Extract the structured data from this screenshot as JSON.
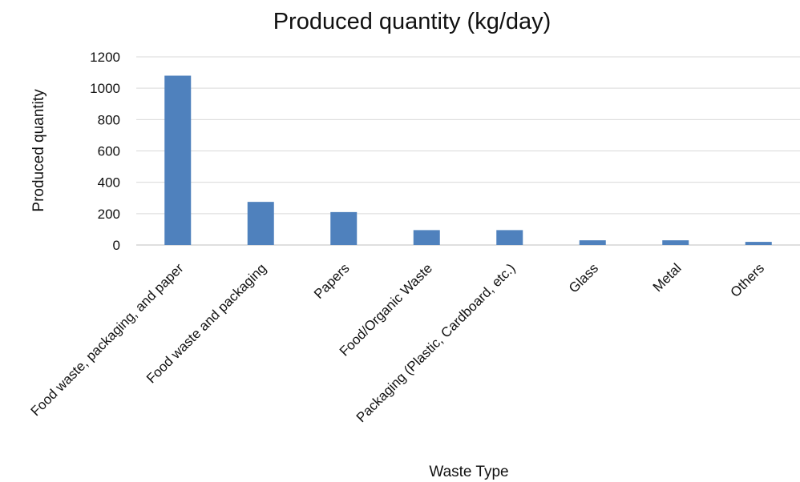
{
  "chart_data": {
    "type": "bar",
    "title": "Produced quantity (kg/day)",
    "xlabel": "Waste Type",
    "ylabel": "Produced quantity",
    "categories": [
      "Food waste, packaging, and paper",
      "Food waste and packaging",
      "Papers",
      "Food/Organic Waste",
      "Packaging (Plastic, Cardboard, etc.)",
      "Glass",
      "Metal",
      "Others"
    ],
    "values": [
      1080,
      275,
      210,
      95,
      95,
      30,
      30,
      20
    ],
    "ylim": [
      0,
      1200
    ],
    "yticks": [
      0,
      200,
      400,
      600,
      800,
      1000,
      1200
    ],
    "grid": true,
    "legend": "none",
    "bar_color": "#4f81bd",
    "grid_color": "#d9d9d9"
  }
}
